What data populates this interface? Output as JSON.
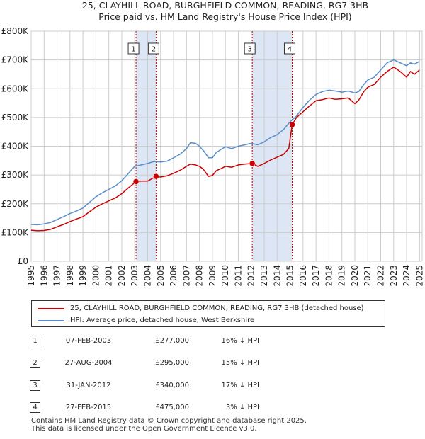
{
  "chart_data": {
    "type": "line",
    "title": "25, CLAYHILL ROAD, BURGHFIELD COMMON, READING, RG7 3HB",
    "subtitle": "Price paid vs. HM Land Registry's House Price Index (HPI)",
    "xlabel": "",
    "ylabel": "",
    "xlim": [
      1995,
      2025.2
    ],
    "ylim": [
      0,
      800000
    ],
    "x_ticks": [
      "1995",
      "1996",
      "1997",
      "1998",
      "1999",
      "2000",
      "2001",
      "2002",
      "2003",
      "2004",
      "2005",
      "2006",
      "2007",
      "2008",
      "2009",
      "2010",
      "2011",
      "2012",
      "2013",
      "2014",
      "2015",
      "2016",
      "2017",
      "2018",
      "2019",
      "2020",
      "2021",
      "2022",
      "2023",
      "2024",
      "2025"
    ],
    "y_ticks": [
      {
        "value": 0,
        "label": "£0"
      },
      {
        "value": 100000,
        "label": "£100K"
      },
      {
        "value": 200000,
        "label": "£200K"
      },
      {
        "value": 300000,
        "label": "£300K"
      },
      {
        "value": 400000,
        "label": "£400K"
      },
      {
        "value": 500000,
        "label": "£500K"
      },
      {
        "value": 600000,
        "label": "£600K"
      },
      {
        "value": 700000,
        "label": "£700K"
      },
      {
        "value": 800000,
        "label": "£800K"
      }
    ],
    "grid": true,
    "series": [
      {
        "name": "25, CLAYHILL ROAD, BURGHFIELD COMMON, READING, RG7 3HB (detached house)",
        "color": "#cc0000",
        "x": [
          1995.0,
          1995.5,
          1996.0,
          1996.5,
          1997.0,
          1997.5,
          1998.0,
          1998.5,
          1999.0,
          1999.5,
          2000.0,
          2000.5,
          2001.0,
          2001.5,
          2002.0,
          2002.5,
          2003.1,
          2003.5,
          2004.0,
          2004.65,
          2005.0,
          2005.5,
          2006.0,
          2006.5,
          2007.0,
          2007.3,
          2007.7,
          2008.0,
          2008.3,
          2008.7,
          2009.0,
          2009.3,
          2009.7,
          2010.0,
          2010.5,
          2011.0,
          2011.5,
          2012.08,
          2012.5,
          2013.0,
          2013.5,
          2014.0,
          2014.5,
          2014.9,
          2015.16,
          2015.5,
          2016.0,
          2016.5,
          2017.0,
          2017.5,
          2018.0,
          2018.5,
          2019.0,
          2019.5,
          2020.0,
          2020.3,
          2020.7,
          2021.0,
          2021.5,
          2022.0,
          2022.5,
          2023.0,
          2023.5,
          2024.0,
          2024.3,
          2024.6,
          2025.0
        ],
        "values": [
          108000,
          106000,
          107000,
          111000,
          120000,
          128000,
          138000,
          147000,
          155000,
          172000,
          188000,
          200000,
          210000,
          220000,
          235000,
          255000,
          277000,
          279000,
          279000,
          295000,
          293000,
          297000,
          306000,
          316000,
          330000,
          338000,
          335000,
          330000,
          320000,
          295000,
          298000,
          315000,
          323000,
          330000,
          327000,
          335000,
          338000,
          340000,
          330000,
          340000,
          352000,
          362000,
          372000,
          392000,
          475000,
          500000,
          520000,
          540000,
          558000,
          562000,
          568000,
          563000,
          565000,
          568000,
          548000,
          560000,
          590000,
          605000,
          615000,
          640000,
          660000,
          675000,
          660000,
          640000,
          660000,
          650000,
          665000
        ]
      },
      {
        "name": "HPI: Average price, detached house, West Berkshire",
        "color": "#5b8ec9",
        "x": [
          1995.0,
          1995.5,
          1996.0,
          1996.5,
          1997.0,
          1997.5,
          1998.0,
          1998.5,
          1999.0,
          1999.5,
          2000.0,
          2000.5,
          2001.0,
          2001.5,
          2002.0,
          2002.5,
          2003.0,
          2003.5,
          2004.0,
          2004.5,
          2005.0,
          2005.5,
          2006.0,
          2006.5,
          2007.0,
          2007.3,
          2007.7,
          2008.0,
          2008.3,
          2008.7,
          2009.0,
          2009.3,
          2009.7,
          2010.0,
          2010.5,
          2011.0,
          2011.5,
          2012.0,
          2012.5,
          2013.0,
          2013.5,
          2014.0,
          2014.5,
          2015.0,
          2015.5,
          2016.0,
          2016.5,
          2017.0,
          2017.5,
          2018.0,
          2018.5,
          2019.0,
          2019.5,
          2020.0,
          2020.3,
          2020.7,
          2021.0,
          2021.5,
          2022.0,
          2022.5,
          2023.0,
          2023.5,
          2024.0,
          2024.3,
          2024.6,
          2025.0
        ],
        "values": [
          128000,
          127000,
          130000,
          135000,
          145000,
          155000,
          166000,
          175000,
          185000,
          205000,
          224000,
          238000,
          250000,
          262000,
          280000,
          305000,
          330000,
          335000,
          340000,
          347000,
          345000,
          348000,
          360000,
          372000,
          392000,
          412000,
          410000,
          400000,
          385000,
          360000,
          360000,
          378000,
          390000,
          398000,
          392000,
          400000,
          405000,
          410000,
          405000,
          415000,
          430000,
          440000,
          458000,
          485000,
          505000,
          535000,
          560000,
          580000,
          590000,
          595000,
          592000,
          588000,
          592000,
          585000,
          590000,
          615000,
          630000,
          640000,
          665000,
          690000,
          700000,
          690000,
          680000,
          690000,
          685000,
          695000
        ]
      }
    ],
    "sales": [
      {
        "id": "1",
        "x": 2003.1,
        "price": 277000,
        "date": "07-FEB-2003",
        "price_label": "£277,000",
        "hpi": "16% ↓ HPI"
      },
      {
        "id": "2",
        "x": 2004.65,
        "price": 295000,
        "date": "27-AUG-2004",
        "price_label": "£295,000",
        "hpi": "15% ↓ HPI"
      },
      {
        "id": "3",
        "x": 2012.08,
        "price": 340000,
        "date": "31-JAN-2012",
        "price_label": "£340,000",
        "hpi": "17% ↓ HPI"
      },
      {
        "id": "4",
        "x": 2015.16,
        "price": 475000,
        "date": "27-FEB-2015",
        "price_label": "£475,000",
        "hpi": "3% ↓ HPI"
      }
    ],
    "shaded_ranges": [
      [
        2003.1,
        2004.65
      ],
      [
        2012.08,
        2015.16
      ]
    ],
    "colors": {
      "shade": "#dde6f5",
      "grid": "#cccccc",
      "marker_line": "#cc0000"
    }
  },
  "legend": {
    "red_label": "25, CLAYHILL ROAD, BURGHFIELD COMMON, READING, RG7 3HB (detached house)",
    "blue_label": "HPI: Average price, detached house, West Berkshire"
  },
  "footer": {
    "line1": "Contains HM Land Registry data © Crown copyright and database right 2025.",
    "line2": "This data is licensed under the Open Government Licence v3.0."
  }
}
